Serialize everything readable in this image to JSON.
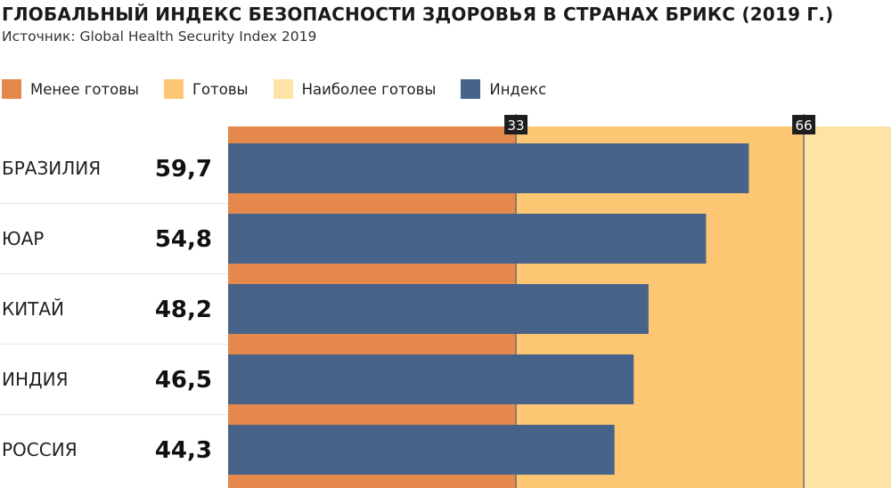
{
  "chart_data": {
    "type": "bar",
    "orientation": "horizontal",
    "title": "ГЛОБАЛЬНЫЙ ИНДЕКС БЕЗОПАСНОСТИ ЗДОРОВЬЯ В СТРАНАХ БРИКС (2019 Г.)",
    "source": "Источник: Global Health Security Index 2019",
    "categories": [
      "БРАЗИЛИЯ",
      "ЮАР",
      "КИТАЙ",
      "ИНДИЯ",
      "РОССИЯ"
    ],
    "value_labels": [
      "59,7",
      "54,8",
      "48,2",
      "46,5",
      "44,3"
    ],
    "series": [
      {
        "name": "Индекс",
        "values": [
          59.7,
          54.8,
          48.2,
          46.5,
          44.3
        ],
        "color": "#48638a"
      }
    ],
    "bands": [
      {
        "name": "Менее готовы",
        "from": 0,
        "to": 33,
        "color": "#e5884b"
      },
      {
        "name": "Готовы",
        "from": 33,
        "to": 66,
        "color": "#fdc672"
      },
      {
        "name": "Наиболее готовы",
        "from": 66,
        "to": 100,
        "color": "#fee3a6"
      }
    ],
    "thresholds": [
      {
        "value": 33,
        "label": "33"
      },
      {
        "value": 66,
        "label": "66"
      }
    ],
    "xlim": [
      0,
      76
    ],
    "legend_position": "top-left",
    "threshold_line_color": "#6b6e73",
    "label_box_color": "#1e1e1e",
    "row_separator_color": "#e6e6e6"
  }
}
